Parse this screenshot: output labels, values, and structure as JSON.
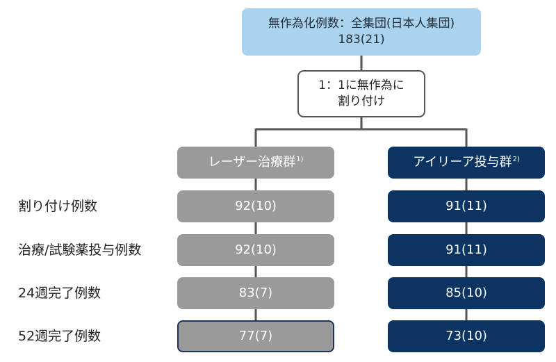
{
  "top_box": {
    "title": "無作為化例数：全集団(日本人集団)",
    "value": "183(21)"
  },
  "randomize_box": {
    "line1": "1：1に無作為に",
    "line2": "割り付け"
  },
  "groups": {
    "laser": {
      "label": "レーザー治療群",
      "note": "1)"
    },
    "drug": {
      "label": "アイリーア投与群",
      "note": "2)"
    }
  },
  "rows": [
    {
      "label": "割り付け例数",
      "laser": "92(10)",
      "drug": "91(11)"
    },
    {
      "label": "治療/試験薬投与例数",
      "laser": "92(10)",
      "drug": "91(11)"
    },
    {
      "label": "24週完了例数",
      "laser": "83(7)",
      "drug": "85(10)"
    },
    {
      "label": "52週完了例数",
      "laser": "77(7)",
      "drug": "73(10)"
    }
  ],
  "colors": {
    "top_fill": "#a9d3ef",
    "laser_fill": "#9a9a9a",
    "drug_fill": "#0b3463",
    "connector": "#555555"
  }
}
